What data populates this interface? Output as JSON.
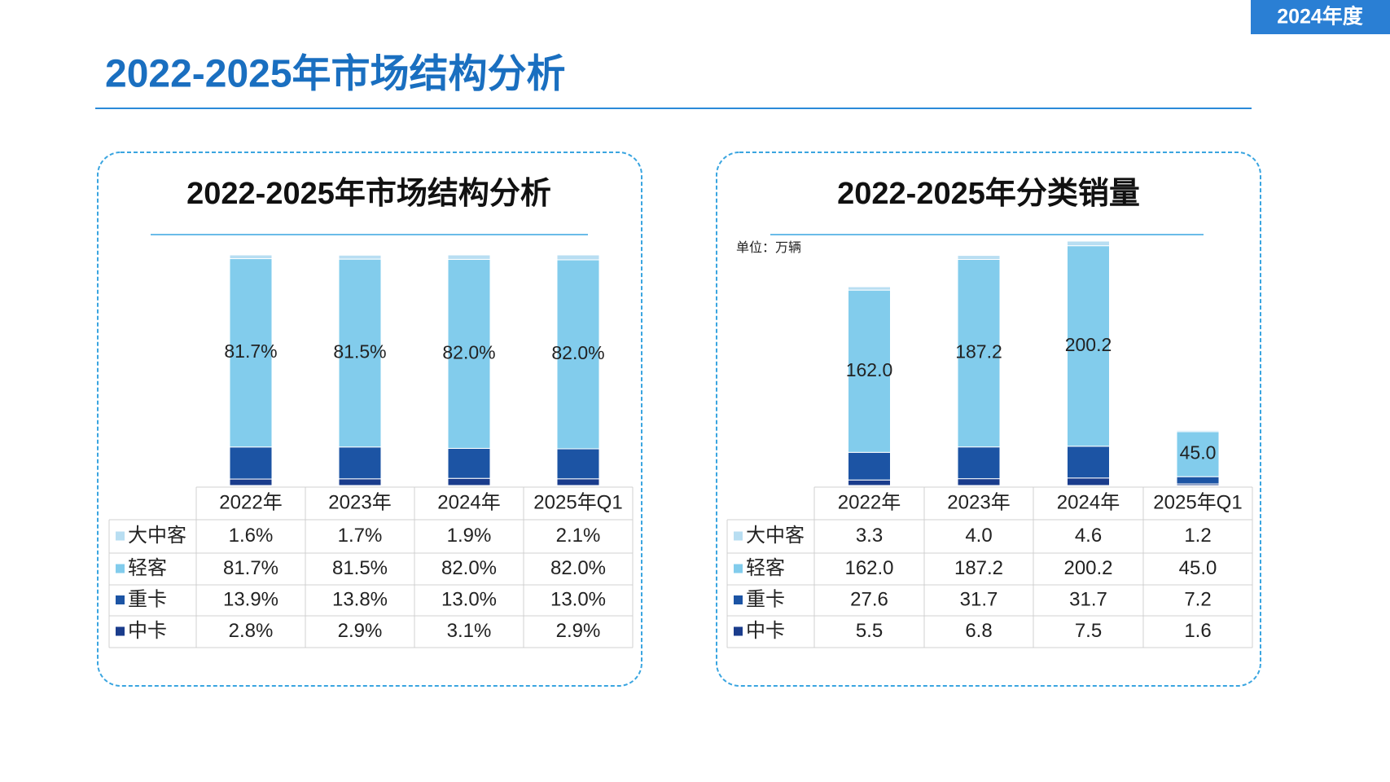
{
  "header": {
    "badge": "2024年度",
    "title": "2022-2025年市场结构分析"
  },
  "chart_data": [
    {
      "type": "bar",
      "stacked": true,
      "title": "2022-2025年市场结构分析",
      "categories": [
        "2022年",
        "2023年",
        "2024年",
        "2025年Q1"
      ],
      "series": [
        {
          "name": "大中客",
          "color": "#b8def2",
          "values": [
            1.6,
            1.7,
            1.9,
            2.1
          ],
          "value_labels": [
            "1.6%",
            "1.7%",
            "1.9%",
            "2.1%"
          ]
        },
        {
          "name": "轻客",
          "color": "#82ccec",
          "values": [
            81.7,
            81.5,
            82.0,
            82.0
          ],
          "value_labels": [
            "81.7%",
            "81.5%",
            "82.0%",
            "82.0%"
          ]
        },
        {
          "name": "重卡",
          "color": "#1c54a4",
          "values": [
            13.9,
            13.8,
            13.0,
            13.0
          ],
          "value_labels": [
            "13.9%",
            "13.8%",
            "13.0%",
            "13.0%"
          ]
        },
        {
          "name": "中卡",
          "color": "#1a3c8c",
          "values": [
            2.8,
            2.9,
            3.1,
            2.9
          ],
          "value_labels": [
            "2.8%",
            "2.9%",
            "3.1%",
            "2.9%"
          ]
        }
      ]
    },
    {
      "type": "bar",
      "stacked": true,
      "title": "2022-2025年分类销量",
      "unit": "单位：万辆",
      "categories": [
        "2022年",
        "2023年",
        "2024年",
        "2025年Q1"
      ],
      "series": [
        {
          "name": "大中客",
          "color": "#b8def2",
          "values": [
            3.3,
            4.0,
            4.6,
            1.2
          ],
          "value_labels": [
            "3.3",
            "4.0",
            "4.6",
            "1.2"
          ]
        },
        {
          "name": "轻客",
          "color": "#82ccec",
          "values": [
            162.0,
            187.2,
            200.2,
            45.0
          ],
          "value_labels": [
            "162.0",
            "187.2",
            "200.2",
            "45.0"
          ]
        },
        {
          "name": "重卡",
          "color": "#1c54a4",
          "values": [
            27.6,
            31.7,
            31.7,
            7.2
          ],
          "value_labels": [
            "27.6",
            "31.7",
            "31.7",
            "7.2"
          ]
        },
        {
          "name": "中卡",
          "color": "#1a3c8c",
          "values": [
            5.5,
            6.8,
            7.5,
            1.6
          ],
          "value_labels": [
            "5.5",
            "6.8",
            "7.5",
            "1.6"
          ]
        }
      ]
    }
  ]
}
